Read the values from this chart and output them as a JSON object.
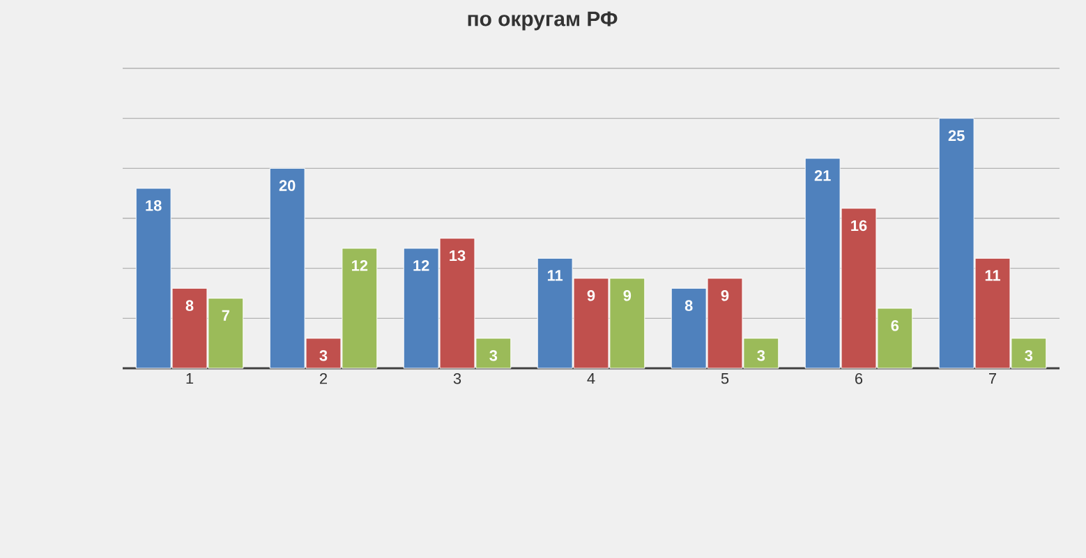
{
  "chart_data": {
    "type": "bar",
    "title": "по округам РФ",
    "categories": [
      "1",
      "2",
      "3",
      "4",
      "5",
      "6",
      "7"
    ],
    "series": [
      {
        "color": "#4f81bd",
        "values": [
          18,
          20,
          12,
          11,
          8,
          21,
          25
        ]
      },
      {
        "color": "#c0504d",
        "values": [
          8,
          3,
          13,
          9,
          9,
          16,
          11
        ]
      },
      {
        "color": "#9bbb59",
        "values": [
          7,
          12,
          3,
          9,
          3,
          6,
          3
        ]
      }
    ],
    "ylim": [
      0,
      30
    ],
    "yticks": [
      {
        "value": 0,
        "label": null
      },
      {
        "value": 5,
        "label": null
      },
      {
        "value": 10,
        "label": null
      },
      {
        "value": 15,
        "label": null
      },
      {
        "value": 20,
        "label": null
      },
      {
        "value": 25,
        "label": null
      },
      {
        "value": 30,
        "label": null
      }
    ],
    "grid": "y",
    "tick_labels": "x",
    "data_labels": true
  }
}
